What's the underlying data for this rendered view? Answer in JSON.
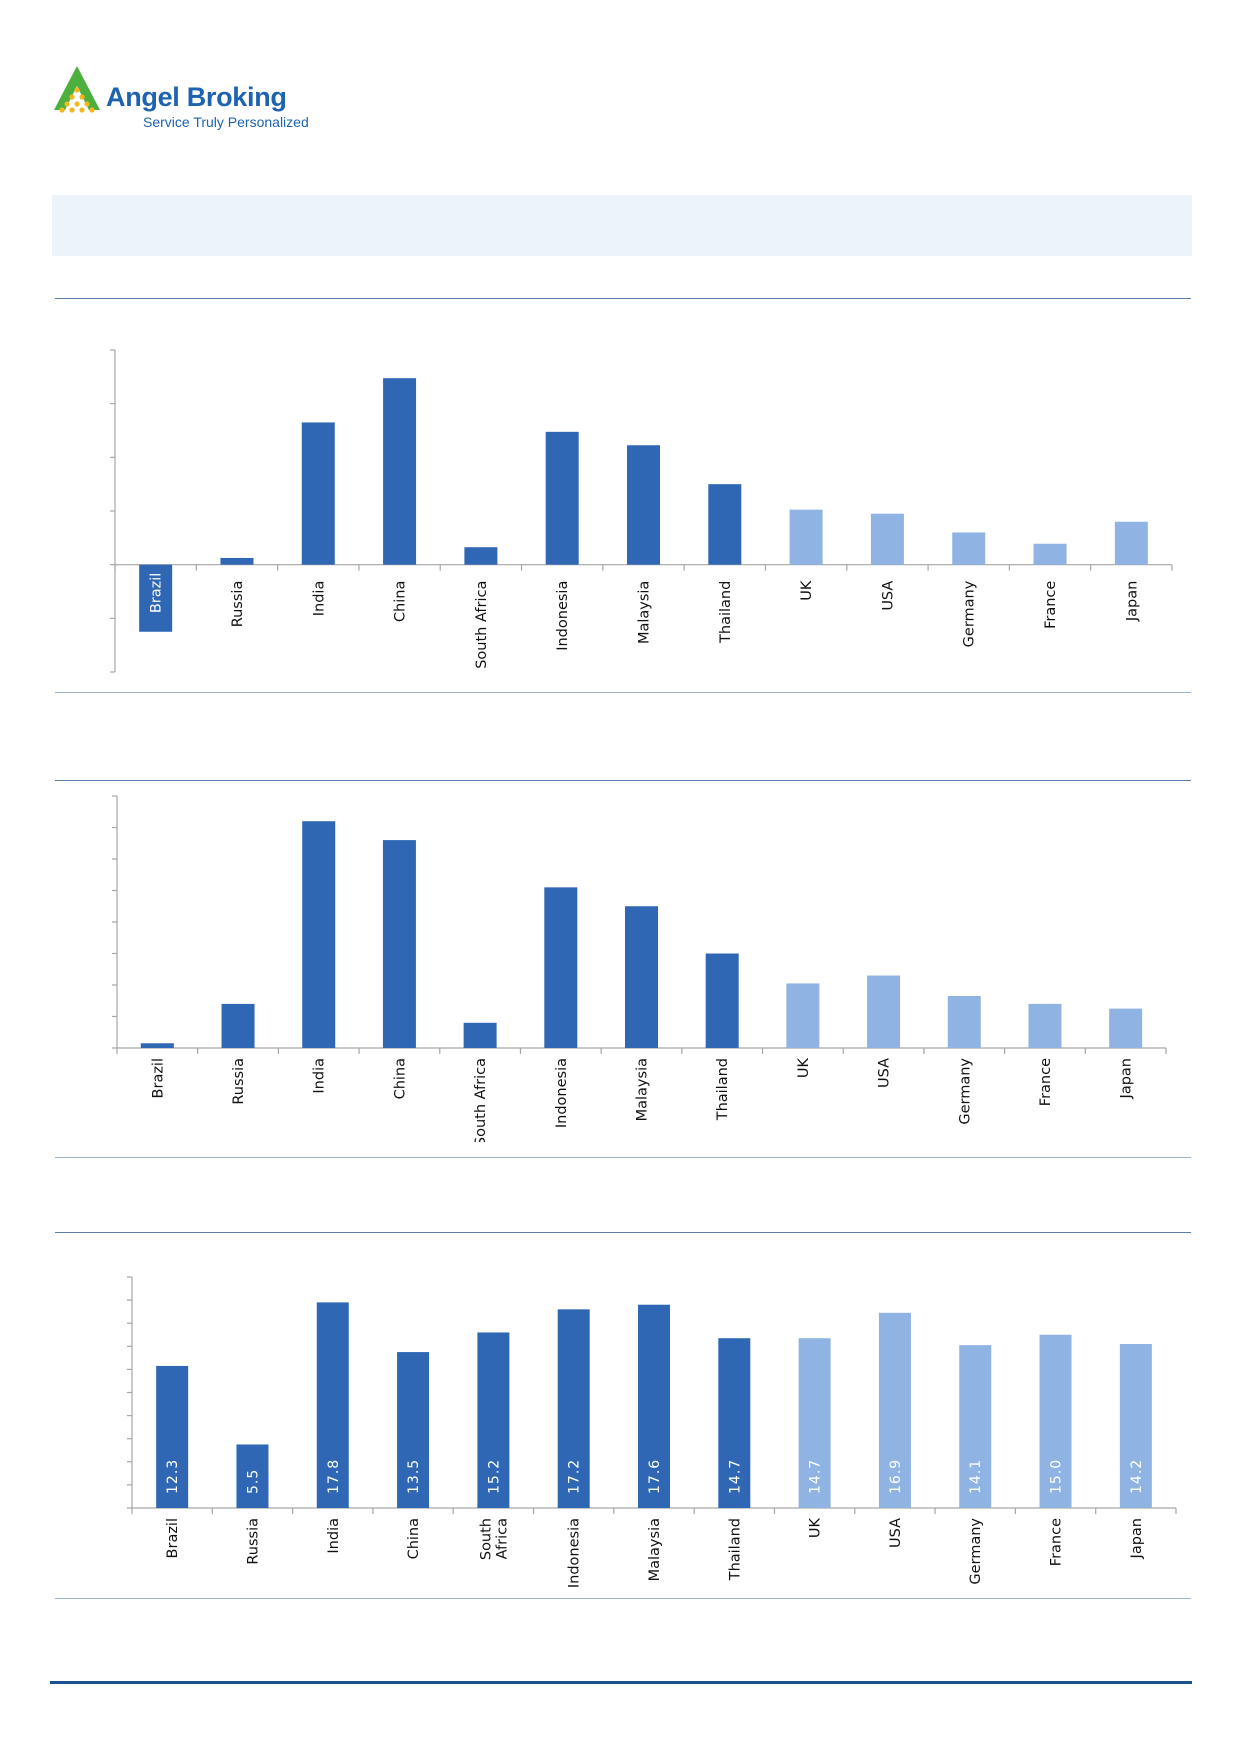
{
  "brand": {
    "name": "Angel Broking",
    "tagline": "Service Truly Personalized",
    "colors": {
      "primary": "#1e63b0",
      "logo_green": "#4caf3e",
      "logo_yellow": "#f5b81c"
    }
  },
  "colors": {
    "emerging": "#2f67b5",
    "developed": "#8fb4e3",
    "axis": "#a6a6a6",
    "label_on_bar": "#ffffff",
    "title_band": "#edf3fa"
  },
  "chart_data": [
    {
      "type": "bar",
      "categories": [
        "Brazil",
        "Russia",
        "India",
        "China",
        "South Africa",
        "Indonesia",
        "Malaysia",
        "Thailand",
        "UK",
        "USA",
        "Germany",
        "France",
        "Japan"
      ],
      "values": [
        -2.5,
        0.25,
        5.3,
        6.95,
        0.65,
        4.95,
        4.45,
        3.0,
        2.05,
        1.9,
        1.2,
        0.78,
        1.6
      ],
      "groups": [
        "emerging",
        "emerging",
        "emerging",
        "emerging",
        "emerging",
        "emerging",
        "emerging",
        "emerging",
        "developed",
        "developed",
        "developed",
        "developed",
        "developed"
      ],
      "ylim": [
        -4,
        8
      ],
      "yticks": [
        -4,
        -2,
        0,
        2,
        4,
        6,
        8
      ],
      "title": "",
      "xlabel": "",
      "ylabel": ""
    },
    {
      "type": "bar",
      "categories": [
        "Brazil",
        "Russia",
        "India",
        "China",
        "South Africa",
        "Indonesia",
        "Malaysia",
        "Thailand",
        "UK",
        "USA",
        "Germany",
        "France",
        "Japan"
      ],
      "values": [
        0.3,
        2.8,
        14.4,
        13.2,
        1.6,
        10.2,
        9.0,
        6.0,
        4.1,
        4.6,
        3.3,
        2.8,
        2.5
      ],
      "groups": [
        "emerging",
        "emerging",
        "emerging",
        "emerging",
        "emerging",
        "emerging",
        "emerging",
        "emerging",
        "developed",
        "developed",
        "developed",
        "developed",
        "developed"
      ],
      "ylim": [
        0,
        16
      ],
      "yticks": [
        0,
        2,
        4,
        6,
        8,
        10,
        12,
        14,
        16
      ],
      "title": "",
      "xlabel": "",
      "ylabel": ""
    },
    {
      "type": "bar",
      "categories": [
        "Brazil",
        "Russia",
        "India",
        "China",
        "South\nAfrica",
        "Indonesia",
        "Malaysia",
        "Thailand",
        "UK",
        "USA",
        "Germany",
        "France",
        "Japan"
      ],
      "values": [
        12.3,
        5.5,
        17.8,
        13.5,
        15.2,
        17.2,
        17.6,
        14.7,
        14.7,
        16.9,
        14.1,
        15.0,
        14.2
      ],
      "data_labels": [
        "12.3",
        "5.5",
        "17.8",
        "13.5",
        "15.2",
        "17.2",
        "17.6",
        "14.7",
        "14.7",
        "16.9",
        "14.1",
        "15.0",
        "14.2"
      ],
      "groups": [
        "emerging",
        "emerging",
        "emerging",
        "emerging",
        "emerging",
        "emerging",
        "emerging",
        "emerging",
        "developed",
        "developed",
        "developed",
        "developed",
        "developed"
      ],
      "ylim": [
        0,
        20
      ],
      "yticks": [
        0,
        2,
        4,
        6,
        8,
        10,
        12,
        14,
        16,
        18,
        20
      ],
      "title": "",
      "xlabel": "",
      "ylabel": ""
    }
  ]
}
